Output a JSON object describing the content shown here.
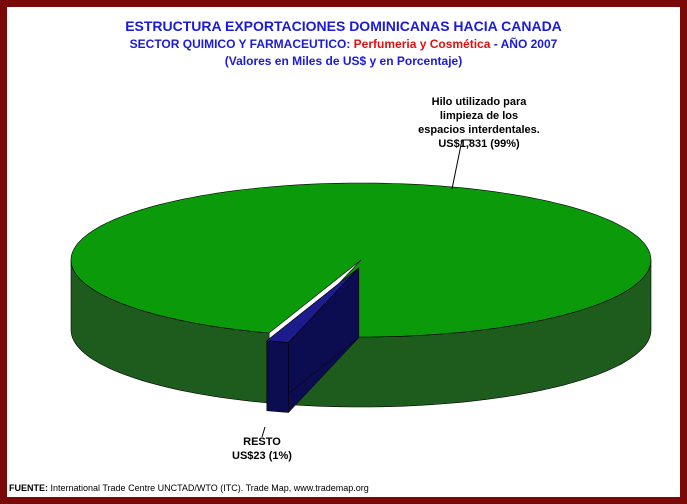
{
  "chart_data": {
    "type": "pie3d",
    "title": "ESTRUCTURA EXPORTACIONES DOMINICANAS HACIA CANADA",
    "subtitle": {
      "prefix": "SECTOR QUIMICO Y FARMACEUTICO:",
      "highlight": "Perfumeria y Cosmética",
      "suffix": "- AÑO 2007"
    },
    "note": "(Valores en Miles de US$ y en Porcentaje)",
    "categories": [
      "Hilo utilizado para limpieza de los espacios interdentales.",
      "RESTO"
    ],
    "values": [
      1831,
      23
    ],
    "value_labels": [
      "US$1,831 (99%)",
      "US$23 (1%)"
    ],
    "colors": [
      "#0a9a0a",
      "#1c1c8c"
    ],
    "side_colors": [
      "#1e5c1e",
      "#0c0c50"
    ],
    "source": {
      "label": "FUENTE:",
      "text": "International Trade Centre UNCTAD/WTO (ITC). Trade Map, www.trademap.org"
    }
  }
}
